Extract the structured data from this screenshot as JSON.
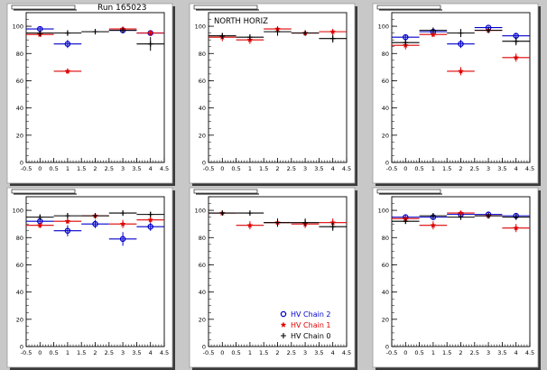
{
  "page": {
    "title": "Run 165023"
  },
  "colors": {
    "background": "#c8c8c8",
    "pad": "#ffffff",
    "frame_shadow": "#3a3a3a",
    "chain2": "#0000cc",
    "chain1": "#dd0000",
    "chain0": "#000000"
  },
  "legend": {
    "entries": [
      {
        "label": "HV Chain 2",
        "marker": "open-circle",
        "color": "#0000cc"
      },
      {
        "label": "HV Chain 1",
        "marker": "star",
        "color": "#dd0000"
      },
      {
        "label": "HV Chain 0",
        "marker": "cross",
        "color": "#000000"
      }
    ]
  },
  "chart_data": [
    {
      "type": "scatter",
      "title": "",
      "caption": "",
      "xlim": [
        -0.5,
        4.5
      ],
      "ylim": [
        0,
        110
      ],
      "xticks": [
        "-0.5",
        "0",
        "0.5",
        "1",
        "1.5",
        "2",
        "2.5",
        "3",
        "3.5",
        "4",
        "4.5"
      ],
      "yticks": [
        "0",
        "20",
        "40",
        "60",
        "80",
        "100"
      ],
      "series": [
        {
          "name": "HV Chain 2",
          "x": [
            0,
            1,
            3,
            4
          ],
          "y": [
            98,
            87,
            97,
            95
          ],
          "yerr": [
            2,
            3,
            2,
            2
          ]
        },
        {
          "name": "HV Chain 1",
          "x": [
            0,
            1,
            3,
            4
          ],
          "y": [
            94,
            67,
            98,
            95
          ],
          "yerr": [
            2,
            2,
            1,
            2
          ]
        },
        {
          "name": "HV Chain 0",
          "x": [
            0,
            1,
            2,
            3,
            4
          ],
          "y": [
            95,
            95,
            96,
            97,
            87
          ],
          "yerr": [
            2,
            2,
            2,
            2,
            5
          ]
        }
      ]
    },
    {
      "type": "scatter",
      "title": "",
      "caption": "NORTH HORIZ",
      "xlim": [
        -0.5,
        4.5
      ],
      "ylim": [
        0,
        110
      ],
      "xticks": [
        "-0.5",
        "0",
        "0.5",
        "1",
        "1.5",
        "2",
        "2.5",
        "3",
        "3.5",
        "4",
        "4.5"
      ],
      "yticks": [
        "0",
        "20",
        "40",
        "60",
        "80",
        "100"
      ],
      "series": [
        {
          "name": "HV Chain 2",
          "x": [],
          "y": [],
          "yerr": []
        },
        {
          "name": "HV Chain 1",
          "x": [
            0,
            1,
            2,
            3,
            4
          ],
          "y": [
            92,
            90,
            98,
            95,
            96
          ],
          "yerr": [
            3,
            3,
            2,
            2,
            2
          ]
        },
        {
          "name": "HV Chain 0",
          "x": [
            0,
            1,
            2,
            3,
            4
          ],
          "y": [
            93,
            92,
            96,
            95,
            91
          ],
          "yerr": [
            2,
            2,
            3,
            2,
            3
          ]
        }
      ]
    },
    {
      "type": "scatter",
      "title": "",
      "caption": "",
      "xlim": [
        -0.5,
        4.5
      ],
      "ylim": [
        0,
        110
      ],
      "xticks": [
        "-0.5",
        "0",
        "0.5",
        "1",
        "1.5",
        "2",
        "2.5",
        "3",
        "3.5",
        "4",
        "4.5"
      ],
      "yticks": [
        "0",
        "20",
        "40",
        "60",
        "80",
        "100"
      ],
      "series": [
        {
          "name": "HV Chain 2",
          "x": [
            0,
            1,
            2,
            3,
            4
          ],
          "y": [
            92,
            96,
            87,
            99,
            93
          ],
          "yerr": [
            2,
            2,
            3,
            1,
            2
          ]
        },
        {
          "name": "HV Chain 1",
          "x": [
            0,
            1,
            2,
            3,
            4
          ],
          "y": [
            86,
            94,
            67,
            97,
            77
          ],
          "yerr": [
            3,
            2,
            3,
            2,
            3
          ]
        },
        {
          "name": "HV Chain 0",
          "x": [
            0,
            1,
            2,
            3,
            4
          ],
          "y": [
            88,
            97,
            95,
            97,
            89
          ],
          "yerr": [
            2,
            2,
            3,
            2,
            3
          ]
        }
      ]
    },
    {
      "type": "scatter",
      "title": "",
      "caption": "",
      "xlim": [
        -0.5,
        4.5
      ],
      "ylim": [
        0,
        110
      ],
      "xticks": [
        "-0.5",
        "0",
        "0.5",
        "1",
        "1.5",
        "2",
        "2.5",
        "3",
        "3.5",
        "4",
        "4.5"
      ],
      "yticks": [
        "0",
        "20",
        "40",
        "60",
        "80",
        "100"
      ],
      "series": [
        {
          "name": "HV Chain 2",
          "x": [
            0,
            1,
            2,
            3,
            4
          ],
          "y": [
            92,
            85,
            90,
            79,
            88
          ],
          "yerr": [
            2,
            4,
            3,
            5,
            3
          ]
        },
        {
          "name": "HV Chain 1",
          "x": [
            0,
            1,
            2,
            3,
            4
          ],
          "y": [
            89,
            92,
            96,
            90,
            93
          ],
          "yerr": [
            2,
            2,
            2,
            3,
            2
          ]
        },
        {
          "name": "HV Chain 0",
          "x": [
            0,
            1,
            2,
            3,
            4
          ],
          "y": [
            95,
            96,
            96,
            98,
            97
          ],
          "yerr": [
            2,
            2,
            2,
            2,
            2
          ]
        }
      ]
    },
    {
      "type": "scatter",
      "title": "",
      "caption": "",
      "xlim": [
        -0.5,
        4.5
      ],
      "ylim": [
        0,
        110
      ],
      "xticks": [
        "-0.5",
        "0",
        "0.5",
        "1",
        "1.5",
        "2",
        "2.5",
        "3",
        "3.5",
        "4",
        "4.5"
      ],
      "yticks": [
        "0",
        "20",
        "40",
        "60",
        "80",
        "100"
      ],
      "series": [
        {
          "name": "HV Chain 2",
          "x": [],
          "y": [],
          "yerr": []
        },
        {
          "name": "HV Chain 1",
          "x": [
            0,
            1,
            2,
            3,
            4
          ],
          "y": [
            98,
            89,
            91,
            90,
            91
          ],
          "yerr": [
            1,
            3,
            3,
            3,
            3
          ]
        },
        {
          "name": "HV Chain 0",
          "x": [
            0,
            1,
            2,
            3,
            4
          ],
          "y": [
            98,
            98,
            91,
            91,
            88
          ],
          "yerr": [
            1,
            1,
            3,
            3,
            3
          ]
        }
      ]
    },
    {
      "type": "scatter",
      "title": "",
      "caption": "",
      "xlim": [
        -0.5,
        4.5
      ],
      "ylim": [
        0,
        110
      ],
      "xticks": [
        "-0.5",
        "0",
        "0.5",
        "1",
        "1.5",
        "2",
        "2.5",
        "3",
        "3.5",
        "4",
        "4.5"
      ],
      "yticks": [
        "0",
        "20",
        "40",
        "60",
        "80",
        "100"
      ],
      "series": [
        {
          "name": "HV Chain 2",
          "x": [
            0,
            1,
            2,
            3,
            4
          ],
          "y": [
            95,
            95,
            97,
            97,
            96
          ],
          "yerr": [
            2,
            2,
            1,
            2,
            2
          ]
        },
        {
          "name": "HV Chain 1",
          "x": [
            0,
            1,
            2,
            3,
            4
          ],
          "y": [
            94,
            89,
            98,
            96,
            87
          ],
          "yerr": [
            2,
            3,
            1,
            2,
            3
          ]
        },
        {
          "name": "HV Chain 0",
          "x": [
            0,
            1,
            2,
            3,
            4
          ],
          "y": [
            92,
            96,
            95,
            96,
            95
          ],
          "yerr": [
            2,
            2,
            2,
            2,
            2
          ]
        }
      ]
    }
  ]
}
